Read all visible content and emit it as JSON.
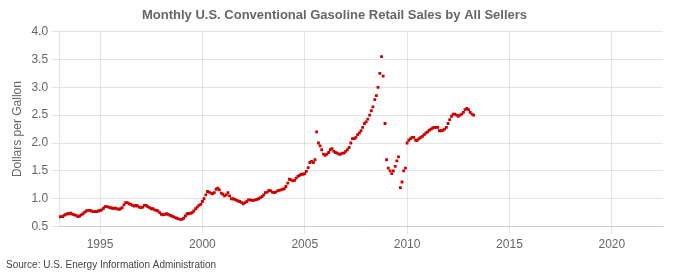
{
  "chart_data": {
    "type": "scatter",
    "title": "Monthly U.S. Conventional Gasoline Retail Sales by All Sellers",
    "y_label": "Dollars per Gallon",
    "annotation": "Source: U.S. Energy Information Administration",
    "x": [
      1993.0,
      1993.08,
      1993.17,
      1993.25,
      1993.33,
      1993.42,
      1993.5,
      1993.58,
      1993.67,
      1993.75,
      1993.83,
      1993.92,
      1994.0,
      1994.08,
      1994.17,
      1994.25,
      1994.33,
      1994.42,
      1994.5,
      1994.58,
      1994.67,
      1994.75,
      1994.83,
      1994.92,
      1995.0,
      1995.08,
      1995.17,
      1995.25,
      1995.33,
      1995.42,
      1995.5,
      1995.58,
      1995.67,
      1995.75,
      1995.83,
      1995.92,
      1996.0,
      1996.08,
      1996.17,
      1996.25,
      1996.33,
      1996.42,
      1996.5,
      1996.58,
      1996.67,
      1996.75,
      1996.83,
      1996.92,
      1997.0,
      1997.08,
      1997.17,
      1997.25,
      1997.33,
      1997.42,
      1997.5,
      1997.58,
      1997.67,
      1997.75,
      1997.83,
      1997.92,
      1998.0,
      1998.08,
      1998.17,
      1998.25,
      1998.33,
      1998.42,
      1998.5,
      1998.58,
      1998.67,
      1998.75,
      1998.83,
      1998.92,
      1999.0,
      1999.08,
      1999.17,
      1999.25,
      1999.33,
      1999.42,
      1999.5,
      1999.58,
      1999.67,
      1999.75,
      1999.83,
      1999.92,
      2000.0,
      2000.08,
      2000.17,
      2000.25,
      2000.33,
      2000.42,
      2000.5,
      2000.58,
      2000.67,
      2000.75,
      2000.83,
      2000.92,
      2001.0,
      2001.08,
      2001.17,
      2001.25,
      2001.33,
      2001.42,
      2001.5,
      2001.58,
      2001.67,
      2001.75,
      2001.83,
      2001.92,
      2002.0,
      2002.08,
      2002.17,
      2002.25,
      2002.33,
      2002.42,
      2002.5,
      2002.58,
      2002.67,
      2002.75,
      2002.83,
      2002.92,
      2003.0,
      2003.08,
      2003.17,
      2003.25,
      2003.33,
      2003.42,
      2003.5,
      2003.58,
      2003.67,
      2003.75,
      2003.83,
      2003.92,
      2004.0,
      2004.08,
      2004.17,
      2004.25,
      2004.33,
      2004.42,
      2004.5,
      2004.58,
      2004.67,
      2004.75,
      2004.83,
      2004.92,
      2005.0,
      2005.08,
      2005.17,
      2005.25,
      2005.33,
      2005.42,
      2005.5,
      2005.58,
      2005.67,
      2005.75,
      2005.83,
      2005.92,
      2006.0,
      2006.08,
      2006.17,
      2006.25,
      2006.33,
      2006.42,
      2006.5,
      2006.58,
      2006.67,
      2006.75,
      2006.83,
      2006.92,
      2007.0,
      2007.08,
      2007.17,
      2007.25,
      2007.33,
      2007.42,
      2007.5,
      2007.58,
      2007.67,
      2007.75,
      2007.83,
      2007.92,
      2008.0,
      2008.08,
      2008.17,
      2008.25,
      2008.33,
      2008.42,
      2008.5,
      2008.58,
      2008.67,
      2008.75,
      2008.83,
      2008.92,
      2009.0,
      2009.08,
      2009.17,
      2009.25,
      2009.33,
      2009.42,
      2009.5,
      2009.58,
      2009.67,
      2009.75,
      2009.83,
      2009.92,
      2010.0,
      2010.08,
      2010.17,
      2010.25,
      2010.33,
      2010.42,
      2010.5,
      2010.58,
      2010.67,
      2010.75,
      2010.83,
      2010.92,
      2011.0,
      2011.08,
      2011.17,
      2011.25,
      2011.33,
      2011.42,
      2011.5,
      2011.58,
      2011.67,
      2011.75,
      2011.83,
      2011.92,
      2012.0,
      2012.08,
      2012.17,
      2012.25,
      2012.33,
      2012.42,
      2012.5,
      2012.58,
      2012.67,
      2012.75,
      2012.83,
      2012.92,
      2013.0,
      2013.08,
      2013.17,
      2013.25
    ],
    "values": [
      0.67,
      0.68,
      0.68,
      0.7,
      0.72,
      0.73,
      0.73,
      0.74,
      0.72,
      0.71,
      0.7,
      0.68,
      0.69,
      0.71,
      0.73,
      0.76,
      0.78,
      0.79,
      0.79,
      0.78,
      0.77,
      0.77,
      0.77,
      0.78,
      0.79,
      0.8,
      0.83,
      0.86,
      0.86,
      0.85,
      0.84,
      0.83,
      0.83,
      0.83,
      0.82,
      0.81,
      0.82,
      0.84,
      0.89,
      0.93,
      0.93,
      0.91,
      0.9,
      0.88,
      0.87,
      0.88,
      0.87,
      0.85,
      0.84,
      0.85,
      0.88,
      0.88,
      0.86,
      0.84,
      0.82,
      0.82,
      0.8,
      0.79,
      0.78,
      0.75,
      0.72,
      0.71,
      0.72,
      0.73,
      0.72,
      0.7,
      0.69,
      0.68,
      0.66,
      0.65,
      0.64,
      0.63,
      0.63,
      0.65,
      0.69,
      0.73,
      0.73,
      0.74,
      0.75,
      0.78,
      0.82,
      0.85,
      0.88,
      0.9,
      0.95,
      1.0,
      1.07,
      1.13,
      1.12,
      1.1,
      1.09,
      1.11,
      1.17,
      1.19,
      1.16,
      1.1,
      1.08,
      1.05,
      1.07,
      1.11,
      1.05,
      1.0,
      1.0,
      0.99,
      0.97,
      0.96,
      0.95,
      0.93,
      0.91,
      0.93,
      0.95,
      0.98,
      0.98,
      0.97,
      0.97,
      0.98,
      0.99,
      1.0,
      1.02,
      1.04,
      1.07,
      1.11,
      1.12,
      1.15,
      1.14,
      1.12,
      1.11,
      1.12,
      1.14,
      1.15,
      1.16,
      1.17,
      1.18,
      1.22,
      1.28,
      1.35,
      1.34,
      1.32,
      1.33,
      1.37,
      1.4,
      1.42,
      1.44,
      1.44,
      1.45,
      1.49,
      1.56,
      1.65,
      1.67,
      1.65,
      1.7,
      2.2,
      2.0,
      1.95,
      1.88,
      1.8,
      1.78,
      1.8,
      1.83,
      1.88,
      1.9,
      1.85,
      1.83,
      1.82,
      1.8,
      1.8,
      1.82,
      1.82,
      1.85,
      1.88,
      1.92,
      2.0,
      2.08,
      2.08,
      2.1,
      2.15,
      2.18,
      2.22,
      2.28,
      2.35,
      2.38,
      2.43,
      2.5,
      2.58,
      2.65,
      2.78,
      2.85,
      3.0,
      3.25,
      3.55,
      3.2,
      2.35,
      1.7,
      1.55,
      1.5,
      1.45,
      1.5,
      1.58,
      1.68,
      1.75,
      1.2,
      1.3,
      1.5,
      1.55,
      2.0,
      2.05,
      2.08,
      2.1,
      2.1,
      2.05,
      2.05,
      2.08,
      2.1,
      2.12,
      2.15,
      2.18,
      2.2,
      2.23,
      2.25,
      2.27,
      2.28,
      2.28,
      2.28,
      2.22,
      2.22,
      2.23,
      2.25,
      2.28,
      2.35,
      2.42,
      2.48,
      2.52,
      2.52,
      2.5,
      2.48,
      2.5,
      2.52,
      2.55,
      2.6,
      2.62,
      2.6,
      2.55,
      2.52,
      2.5
    ],
    "color": "#CC0000",
    "marker": "square",
    "xlim": [
      1993.0,
      2022.5
    ],
    "xticks": [
      1995,
      2000,
      2005,
      2010,
      2015,
      2020
    ],
    "ylim": [
      0.5,
      4.0
    ],
    "yticks": [
      0.5,
      {
        "value": 1.0,
        "label": "1.0"
      },
      1.5,
      {
        "value": 2.0,
        "label": "2.0"
      },
      2.5,
      {
        "value": 3.0,
        "label": "3.0"
      },
      3.5,
      {
        "value": 4.0,
        "label": "4.0"
      }
    ],
    "grid": true
  }
}
